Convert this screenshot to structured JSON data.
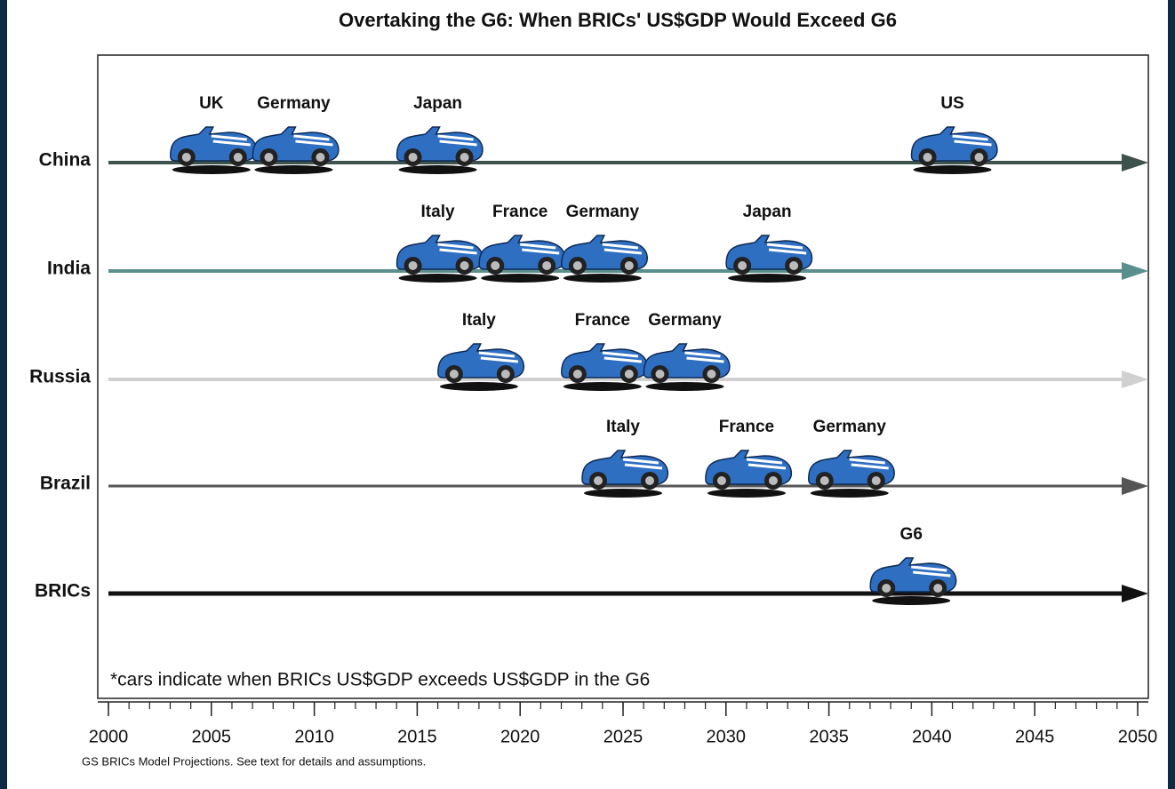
{
  "chart_data": {
    "type": "timeline",
    "title": "Overtaking the G6: When BRICs' US$GDP Would Exceed G6",
    "note": "*cars indicate when BRICs US$GDP exceeds US$GDP in the G6",
    "source": "GS BRICs Model Projections. See text for details and assumptions.",
    "xlim": [
      2000,
      2050
    ],
    "xticks": [
      2000,
      2005,
      2010,
      2015,
      2020,
      2025,
      2030,
      2035,
      2040,
      2045,
      2050
    ],
    "series": [
      {
        "name": "China",
        "color": "#3d524c",
        "labels": [
          "UK",
          "Germany",
          "Japan",
          "US"
        ],
        "values": [
          2005,
          2009,
          2016,
          2041
        ]
      },
      {
        "name": "India",
        "color": "#5b8f8d",
        "labels": [
          "Italy",
          "France",
          "Germany",
          "Japan"
        ],
        "values": [
          2016,
          2020,
          2024,
          2032
        ]
      },
      {
        "name": "Russia",
        "color": "#d0d0d0",
        "labels": [
          "Italy",
          "France",
          "Germany"
        ],
        "values": [
          2018,
          2024,
          2028
        ]
      },
      {
        "name": "Brazil",
        "color": "#555555",
        "labels": [
          "Italy",
          "France",
          "Germany"
        ],
        "values": [
          2025,
          2031,
          2036
        ]
      },
      {
        "name": "BRICs",
        "color": "#111111",
        "labels": [
          "G6"
        ],
        "values": [
          2039
        ]
      }
    ]
  }
}
